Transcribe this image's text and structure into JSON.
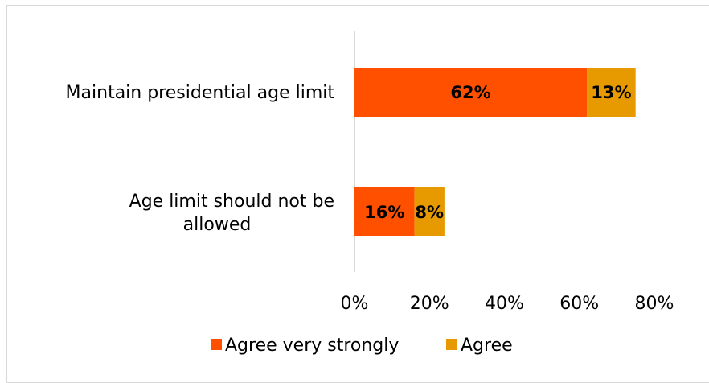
{
  "chart_data": {
    "type": "bar",
    "orientation": "horizontal",
    "stacked": true,
    "categories": [
      "Maintain presidential age limit",
      "Age limit should not be allowed"
    ],
    "series": [
      {
        "name": "Agree very strongly",
        "values": [
          62,
          16
        ],
        "labels": [
          "62%",
          "16%"
        ],
        "color": "#ff5000"
      },
      {
        "name": "Agree",
        "values": [
          13,
          8
        ],
        "labels": [
          "13%",
          "8%"
        ],
        "color": "#e69a00"
      }
    ],
    "xlim": [
      0,
      80
    ],
    "xticks": [
      0,
      20,
      40,
      60,
      80
    ],
    "xtick_labels": [
      "0%",
      "20%",
      "40%",
      "60%",
      "80%"
    ],
    "grid": false,
    "legend_position": "bottom"
  }
}
